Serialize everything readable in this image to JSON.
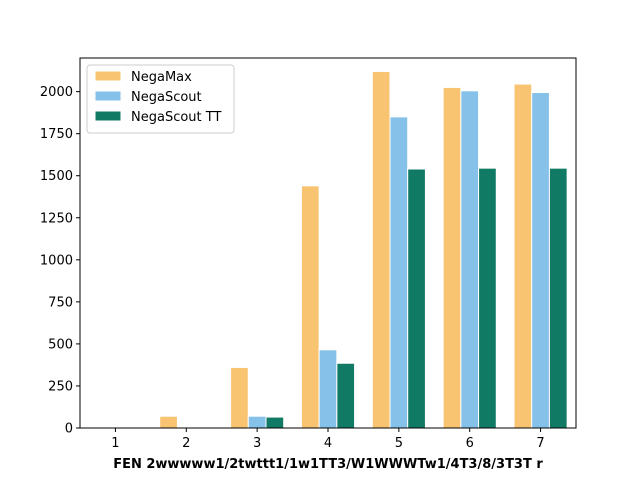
{
  "chart_data": {
    "type": "bar",
    "title": "",
    "xlabel": "FEN 2wwwww1/2twttt1/1w1TT3/W1WWWTw1/4T3/8/3T3T r",
    "ylabel": "",
    "categories": [
      "1",
      "2",
      "3",
      "4",
      "5",
      "6",
      "7"
    ],
    "ylim": [
      0,
      2200
    ],
    "yticks": [
      0,
      250,
      500,
      750,
      1000,
      1250,
      1500,
      1750,
      2000
    ],
    "grid": false,
    "legend_position": "top-left",
    "series": [
      {
        "name": "NegaMax",
        "color": "#f8c471",
        "values": [
          5,
          70,
          360,
          1440,
          2120,
          2025,
          2045
        ]
      },
      {
        "name": "NegaScout",
        "color": "#85c1e9",
        "values": [
          3,
          4,
          70,
          465,
          1850,
          2005,
          1995
        ]
      },
      {
        "name": "NegaScout TT",
        "color": "#117a65",
        "values": [
          2,
          3,
          65,
          385,
          1540,
          1545,
          1545
        ]
      }
    ]
  }
}
